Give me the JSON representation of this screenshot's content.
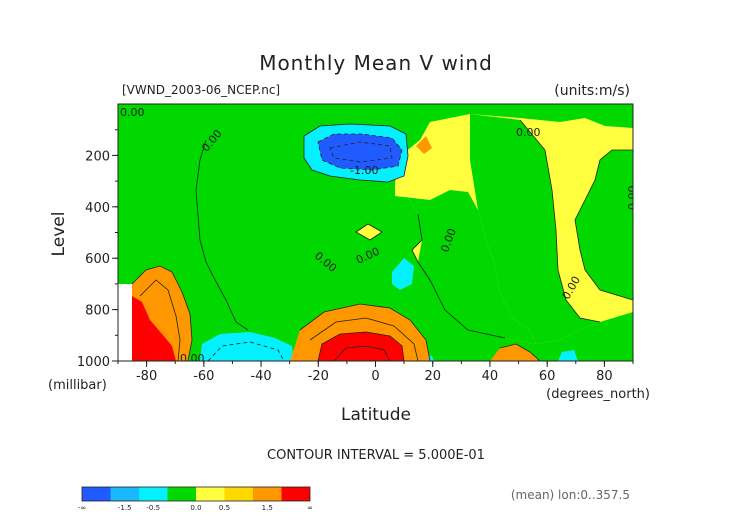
{
  "chart_data": {
    "type": "heatmap",
    "title": "Monthly Mean V wind",
    "subtitle_left": "[VWND_2003-06_NCEP.nc]",
    "subtitle_right": "(units:m/s)",
    "xlabel": "Latitude",
    "xunit": "(degrees_north)",
    "ylabel": "Level",
    "yunit": "(millibar)",
    "x_ticks": [
      "-80",
      "-60",
      "-40",
      "-20",
      "0",
      "20",
      "40",
      "60",
      "80"
    ],
    "y_ticks": [
      "200",
      "400",
      "600",
      "800",
      "1000"
    ],
    "xlim": [
      -90,
      90
    ],
    "ylim": [
      1000,
      0
    ],
    "contour_interval": "CONTOUR INTERVAL = 5.000E-01",
    "contour_labels": [
      "0.00",
      "0.00",
      "0.00",
      "-1.00",
      "0.00",
      "0.00",
      "0.00",
      "0.00",
      "0.00",
      "0.00"
    ],
    "colorbar_labels": [
      "-∞",
      "-1.5",
      "-0.5",
      "0.0",
      "0.5",
      "1.5",
      "∞"
    ],
    "colorbar_colors": [
      "#1f5bff",
      "#19b9ff",
      "#05f0ff",
      "#00d800",
      "#ffff40",
      "#ffd800",
      "#ff9800",
      "#ff0000"
    ],
    "footnote": "(mean) lon:0..357.5"
  }
}
